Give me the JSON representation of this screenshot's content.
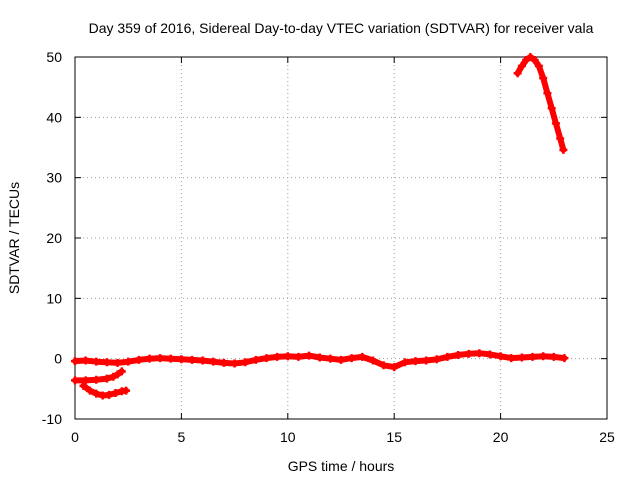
{
  "chart_data": {
    "type": "scatter",
    "title": "Day 359 of 2016, Sidereal Day-to-day VTEC variation (SDTVAR) for receiver vala",
    "xlabel": "GPS time / hours",
    "ylabel": "SDTVAR / TECUs",
    "xlim": [
      0,
      25
    ],
    "ylim": [
      -10,
      50
    ],
    "xticks": [
      0,
      5,
      10,
      15,
      20,
      25
    ],
    "yticks": [
      -10,
      0,
      10,
      20,
      30,
      40,
      50
    ],
    "xtick_labels": [
      "0",
      "5",
      "10",
      "15",
      "20",
      "25"
    ],
    "ytick_labels": [
      "-10",
      "0",
      "10",
      "20",
      "30",
      "40",
      "50"
    ],
    "grid": true,
    "marker_color": "#ff0000",
    "series": [
      {
        "name": "main-trace",
        "points": [
          [
            0.0,
            -0.4
          ],
          [
            0.5,
            -0.3
          ],
          [
            1.0,
            -0.5
          ],
          [
            1.5,
            -0.6
          ],
          [
            2.0,
            -0.7
          ],
          [
            2.5,
            -0.5
          ],
          [
            3.0,
            -0.2
          ],
          [
            3.5,
            0.0
          ],
          [
            4.0,
            0.1
          ],
          [
            4.5,
            0.0
          ],
          [
            5.0,
            -0.1
          ],
          [
            5.5,
            -0.2
          ],
          [
            6.0,
            -0.3
          ],
          [
            6.5,
            -0.5
          ],
          [
            7.0,
            -0.7
          ],
          [
            7.5,
            -0.8
          ],
          [
            8.0,
            -0.6
          ],
          [
            8.5,
            -0.2
          ],
          [
            9.0,
            0.1
          ],
          [
            9.5,
            0.3
          ],
          [
            10.0,
            0.4
          ],
          [
            10.5,
            0.3
          ],
          [
            11.0,
            0.5
          ],
          [
            11.5,
            0.2
          ],
          [
            12.0,
            0.0
          ],
          [
            12.5,
            -0.2
          ],
          [
            13.0,
            0.1
          ],
          [
            13.5,
            0.3
          ],
          [
            14.0,
            -0.3
          ],
          [
            14.5,
            -1.1
          ],
          [
            15.0,
            -1.4
          ],
          [
            15.5,
            -0.6
          ],
          [
            16.0,
            -0.4
          ],
          [
            16.5,
            -0.3
          ],
          [
            17.0,
            -0.1
          ],
          [
            17.5,
            0.3
          ],
          [
            18.0,
            0.6
          ],
          [
            18.5,
            0.8
          ],
          [
            19.0,
            0.9
          ],
          [
            19.5,
            0.7
          ],
          [
            20.0,
            0.4
          ],
          [
            20.5,
            0.1
          ],
          [
            21.0,
            0.2
          ],
          [
            21.5,
            0.3
          ],
          [
            22.0,
            0.4
          ],
          [
            22.5,
            0.3
          ],
          [
            23.0,
            0.1
          ]
        ]
      },
      {
        "name": "early-lower-trace",
        "points": [
          [
            0.0,
            -3.6
          ],
          [
            0.5,
            -3.6
          ],
          [
            1.0,
            -3.5
          ],
          [
            1.5,
            -3.3
          ],
          [
            1.8,
            -3.0
          ],
          [
            2.0,
            -2.6
          ],
          [
            2.2,
            -2.1
          ]
        ]
      },
      {
        "name": "early-dip-trace",
        "points": [
          [
            0.4,
            -4.5
          ],
          [
            0.7,
            -5.3
          ],
          [
            1.0,
            -5.8
          ],
          [
            1.3,
            -6.1
          ],
          [
            1.6,
            -6.0
          ],
          [
            1.9,
            -5.7
          ],
          [
            2.2,
            -5.4
          ],
          [
            2.4,
            -5.3
          ]
        ]
      },
      {
        "name": "late-peak-trace",
        "points": [
          [
            20.8,
            47.3
          ],
          [
            21.0,
            48.5
          ],
          [
            21.2,
            49.5
          ],
          [
            21.4,
            50.0
          ],
          [
            21.6,
            49.5
          ],
          [
            21.8,
            48.5
          ],
          [
            22.0,
            46.5
          ],
          [
            22.2,
            44.0
          ],
          [
            22.4,
            41.5
          ],
          [
            22.6,
            39.0
          ],
          [
            22.8,
            36.5
          ],
          [
            22.95,
            34.6
          ]
        ]
      }
    ]
  }
}
